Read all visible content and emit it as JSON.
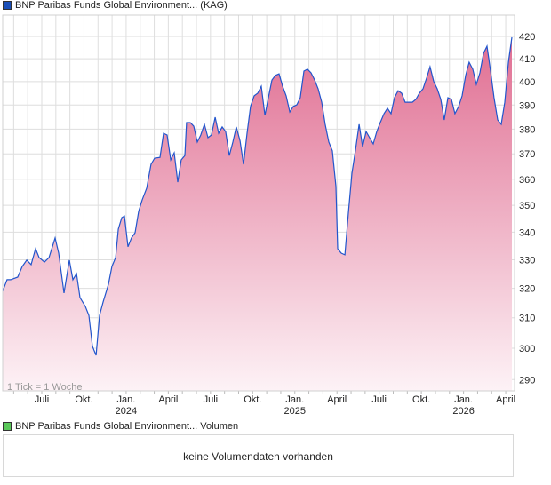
{
  "legend_main": {
    "label": "BNP Paribas Funds Global Environment... (KAG)",
    "color": "#1a4fb8"
  },
  "legend_volume": {
    "label": "BNP Paribas Funds Global Environment... Volumen",
    "color": "#5ac85a"
  },
  "volume_message": "keine Volumendaten vorhanden",
  "tick_note": "1 Tick = 1 Woche",
  "chart_data": {
    "type": "area",
    "title": "BNP Paribas Funds Global Environment... (KAG)",
    "xlabel": "",
    "ylabel": "",
    "y_scale": "log",
    "ylim": [
      286,
      428
    ],
    "x_unit": "months since July 2023",
    "xlim": [
      -2.78,
      33.6
    ],
    "yticks": [
      290,
      300,
      310,
      320,
      330,
      340,
      350,
      360,
      370,
      380,
      390,
      400,
      410,
      420
    ],
    "xticks": [
      {
        "x": 0,
        "label": "Juli",
        "year": ""
      },
      {
        "x": 3,
        "label": "Okt.",
        "year": ""
      },
      {
        "x": 6,
        "label": "Jan.",
        "year": "2024"
      },
      {
        "x": 9,
        "label": "April",
        "year": ""
      },
      {
        "x": 12,
        "label": "Juli",
        "year": ""
      },
      {
        "x": 15,
        "label": "Okt.",
        "year": ""
      },
      {
        "x": 18,
        "label": "Jan.",
        "year": "2025"
      },
      {
        "x": 21,
        "label": "April",
        "year": ""
      },
      {
        "x": 24,
        "label": "Juli",
        "year": ""
      },
      {
        "x": 27,
        "label": "Okt.",
        "year": ""
      },
      {
        "x": 30,
        "label": "Jan.",
        "year": "2026"
      },
      {
        "x": 33,
        "label": "April",
        "year": ""
      }
    ],
    "line_color": "#2255cc",
    "fill_top": "#e06e92",
    "fill_bottom": "#fdf2f6",
    "points": [
      [
        -2.78,
        319.0
      ],
      [
        -2.47,
        323.0
      ],
      [
        -2.21,
        323.0
      ],
      [
        -1.71,
        323.9
      ],
      [
        -1.39,
        327.6
      ],
      [
        -1.07,
        329.9
      ],
      [
        -0.76,
        328.3
      ],
      [
        -0.44,
        334.0
      ],
      [
        -0.19,
        330.8
      ],
      [
        0.19,
        329.2
      ],
      [
        0.51,
        330.8
      ],
      [
        0.95,
        337.9
      ],
      [
        1.2,
        332.4
      ],
      [
        1.58,
        318.4
      ],
      [
        1.96,
        329.9
      ],
      [
        2.21,
        323.0
      ],
      [
        2.47,
        325.1
      ],
      [
        2.72,
        316.8
      ],
      [
        3.1,
        313.8
      ],
      [
        3.35,
        310.8
      ],
      [
        3.6,
        300.6
      ],
      [
        3.86,
        297.7
      ],
      [
        4.11,
        310.8
      ],
      [
        4.36,
        315.3
      ],
      [
        4.74,
        321.4
      ],
      [
        4.99,
        327.6
      ],
      [
        5.25,
        330.8
      ],
      [
        5.44,
        341.1
      ],
      [
        5.69,
        345.4
      ],
      [
        5.88,
        346.0
      ],
      [
        6.13,
        334.7
      ],
      [
        6.38,
        337.9
      ],
      [
        6.64,
        339.8
      ],
      [
        6.89,
        347.7
      ],
      [
        7.14,
        352.1
      ],
      [
        7.46,
        356.5
      ],
      [
        7.77,
        365.8
      ],
      [
        8.03,
        368.3
      ],
      [
        8.41,
        368.6
      ],
      [
        8.66,
        378.3
      ],
      [
        8.91,
        377.6
      ],
      [
        9.17,
        367.6
      ],
      [
        9.42,
        370.4
      ],
      [
        9.67,
        358.9
      ],
      [
        9.92,
        367.6
      ],
      [
        10.18,
        369.3
      ],
      [
        10.3,
        382.7
      ],
      [
        10.56,
        382.7
      ],
      [
        10.81,
        381.2
      ],
      [
        11.06,
        374.7
      ],
      [
        11.31,
        377.6
      ],
      [
        11.57,
        382.0
      ],
      [
        11.82,
        376.5
      ],
      [
        12.07,
        377.6
      ],
      [
        12.33,
        384.9
      ],
      [
        12.58,
        378.3
      ],
      [
        12.83,
        380.9
      ],
      [
        13.08,
        379.0
      ],
      [
        13.34,
        369.3
      ],
      [
        13.59,
        374.7
      ],
      [
        13.84,
        380.9
      ],
      [
        14.1,
        375.2
      ],
      [
        14.35,
        365.8
      ],
      [
        14.6,
        378.3
      ],
      [
        14.85,
        389.4
      ],
      [
        15.11,
        393.9
      ],
      [
        15.36,
        395.0
      ],
      [
        15.61,
        398.0
      ],
      [
        15.87,
        385.7
      ],
      [
        16.12,
        393.1
      ],
      [
        16.37,
        400.7
      ],
      [
        16.62,
        402.7
      ],
      [
        16.88,
        403.4
      ],
      [
        17.13,
        398.0
      ],
      [
        17.38,
        393.9
      ],
      [
        17.64,
        387.1
      ],
      [
        17.89,
        389.4
      ],
      [
        18.14,
        390.1
      ],
      [
        18.39,
        393.1
      ],
      [
        18.65,
        404.6
      ],
      [
        18.9,
        405.4
      ],
      [
        19.15,
        403.8
      ],
      [
        19.41,
        400.7
      ],
      [
        19.66,
        396.9
      ],
      [
        19.91,
        391.2
      ],
      [
        20.16,
        382.0
      ],
      [
        20.42,
        374.7
      ],
      [
        20.67,
        371.2
      ],
      [
        20.92,
        357.2
      ],
      [
        21.05,
        334.0
      ],
      [
        21.3,
        332.4
      ],
      [
        21.56,
        331.8
      ],
      [
        21.81,
        347.0
      ],
      [
        22.06,
        362.3
      ],
      [
        22.31,
        371.2
      ],
      [
        22.57,
        382.0
      ],
      [
        22.82,
        372.9
      ],
      [
        23.07,
        379.0
      ],
      [
        23.32,
        376.5
      ],
      [
        23.58,
        374.0
      ],
      [
        23.83,
        379.0
      ],
      [
        24.08,
        382.7
      ],
      [
        24.34,
        386.4
      ],
      [
        24.59,
        388.6
      ],
      [
        24.84,
        386.4
      ],
      [
        25.09,
        393.1
      ],
      [
        25.35,
        396.1
      ],
      [
        25.6,
        395.0
      ],
      [
        25.85,
        391.2
      ],
      [
        26.11,
        391.2
      ],
      [
        26.36,
        391.2
      ],
      [
        26.61,
        392.4
      ],
      [
        26.86,
        395.0
      ],
      [
        27.12,
        396.9
      ],
      [
        27.37,
        401.5
      ],
      [
        27.62,
        406.5
      ],
      [
        27.88,
        400.0
      ],
      [
        28.13,
        396.9
      ],
      [
        28.38,
        392.4
      ],
      [
        28.63,
        383.8
      ],
      [
        28.89,
        393.1
      ],
      [
        29.14,
        392.4
      ],
      [
        29.39,
        386.4
      ],
      [
        29.65,
        389.4
      ],
      [
        29.9,
        393.9
      ],
      [
        30.15,
        402.7
      ],
      [
        30.4,
        408.5
      ],
      [
        30.66,
        405.4
      ],
      [
        30.91,
        398.8
      ],
      [
        31.16,
        403.8
      ],
      [
        31.42,
        412.4
      ],
      [
        31.67,
        415.6
      ],
      [
        31.92,
        404.6
      ],
      [
        32.17,
        393.1
      ],
      [
        32.43,
        383.8
      ],
      [
        32.68,
        382.0
      ],
      [
        32.93,
        391.2
      ],
      [
        33.19,
        408.5
      ],
      [
        33.44,
        419.6
      ]
    ]
  }
}
